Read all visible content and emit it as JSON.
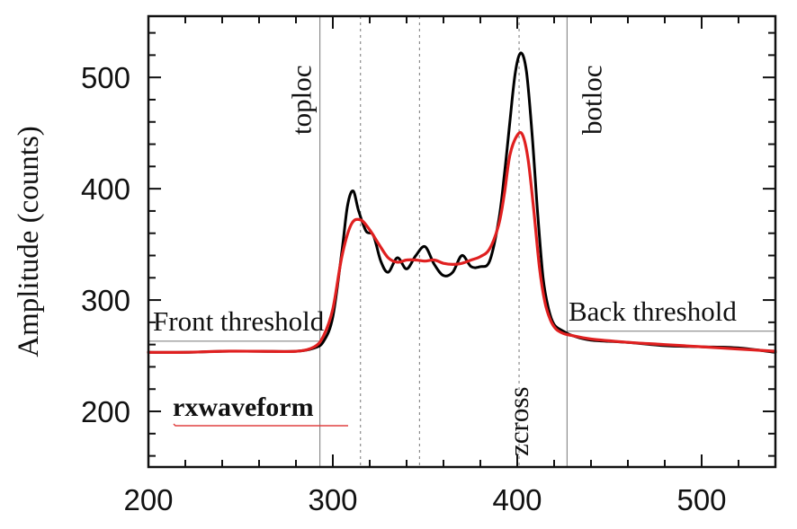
{
  "chart_data": {
    "type": "line",
    "title": "",
    "xlabel": "",
    "ylabel": "Amplitude (counts)",
    "xlim": [
      200,
      540
    ],
    "ylim": [
      150,
      555
    ],
    "xticks": [
      200,
      300,
      400,
      500
    ],
    "yticks": [
      200,
      300,
      400,
      500
    ],
    "grid": false,
    "series": [
      {
        "color": "#000000",
        "x": [
          200,
          220,
          240,
          260,
          280,
          290,
          295,
          300,
          305,
          308,
          311,
          314,
          318,
          322,
          326,
          330,
          335,
          340,
          345,
          350,
          355,
          360,
          365,
          370,
          375,
          380,
          385,
          390,
          393,
          396,
          399,
          402,
          405,
          408,
          411,
          414,
          417,
          420,
          425,
          430,
          440,
          460,
          480,
          500,
          520,
          540
        ],
        "y": [
          253,
          253,
          254,
          254,
          254,
          257,
          263,
          285,
          345,
          385,
          398,
          380,
          362,
          358,
          335,
          325,
          338,
          328,
          340,
          348,
          332,
          322,
          325,
          340,
          330,
          330,
          335,
          372,
          412,
          460,
          505,
          522,
          505,
          450,
          380,
          320,
          292,
          278,
          272,
          268,
          264,
          262,
          259,
          258,
          257,
          253
        ]
      },
      {
        "color": "#e02020",
        "x": [
          200,
          220,
          240,
          260,
          280,
          290,
          295,
          300,
          305,
          310,
          315,
          320,
          325,
          330,
          335,
          340,
          345,
          350,
          355,
          360,
          365,
          370,
          375,
          380,
          385,
          390,
          393,
          396,
          400,
          403,
          406,
          409,
          412,
          415,
          418,
          421,
          425,
          430,
          440,
          460,
          480,
          500,
          520,
          540
        ],
        "y": [
          253,
          253,
          254,
          254,
          254,
          258,
          268,
          292,
          340,
          368,
          372,
          363,
          350,
          338,
          334,
          336,
          336,
          335,
          336,
          333,
          332,
          333,
          336,
          339,
          346,
          368,
          395,
          430,
          448,
          448,
          425,
          380,
          330,
          298,
          282,
          274,
          270,
          268,
          265,
          262,
          260,
          258,
          256,
          254
        ]
      }
    ],
    "vlines_solid": [
      293,
      427
    ],
    "vlines_dotted": [
      315,
      347,
      401
    ],
    "hlines": [
      {
        "y": 263,
        "x_range": [
          200,
          293
        ]
      },
      {
        "y": 272,
        "x_range": [
          427,
          540
        ]
      }
    ],
    "annotations": {
      "toploc": "toploc",
      "botloc": "botloc",
      "zcross": "zcross",
      "front_threshold": "Front threshold",
      "back_threshold": "Back threshold",
      "rxwaveform": "rxwaveform"
    }
  }
}
